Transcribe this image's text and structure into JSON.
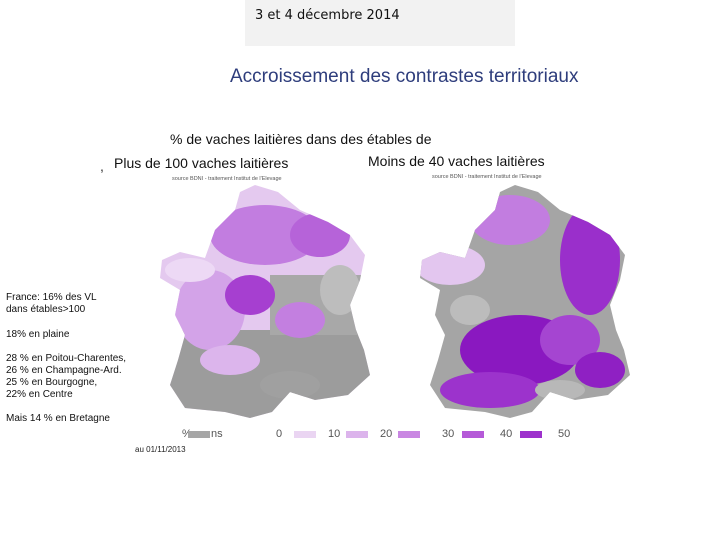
{
  "header": {
    "date": "3 et 4 décembre 2014"
  },
  "title": "Accroissement des contrastes territoriaux",
  "subtitle": "% de vaches laitières dans des étables de",
  "comma": ",",
  "maps": {
    "left_title": "Plus de 100 vaches laitières",
    "right_title": "Moins de 40 vaches laitières",
    "left_source": "source BDNI - traitement Institut de l'Elevage",
    "right_source": "source BDNI - traitement Institut de l'Elevage"
  },
  "notes": [
    "France: 16% des VL",
    "dans étables>100",
    "18% en plaine",
    "28 % en Poitou-Charentes,",
    "26 % en Champagne-Ard.",
    "25 % en Bourgogne,",
    "22% en Centre",
    "Mais 14 % en Bretagne"
  ],
  "legend": {
    "unit": "%",
    "ns": "ns",
    "ticks": [
      "0",
      "10",
      "20",
      "30",
      "40",
      "50"
    ],
    "colors": [
      "#ead5f2",
      "#dcb4ec",
      "#c987e2",
      "#b55ad8",
      "#9d31cc",
      "#8410bb"
    ],
    "ns_color": "#a6a6a6"
  },
  "footer_date": "au 01/11/2013"
}
